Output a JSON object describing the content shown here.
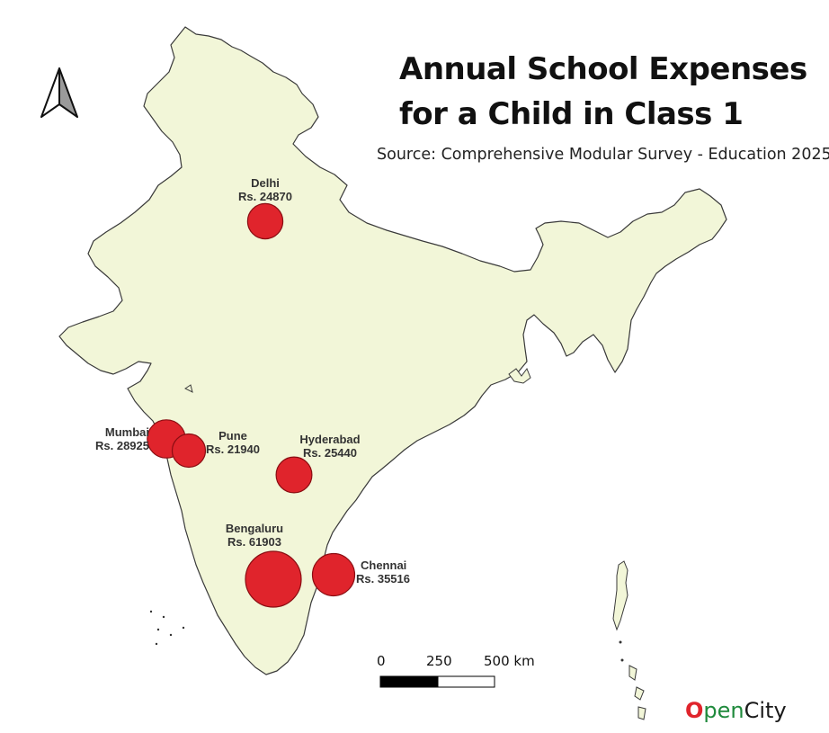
{
  "title_line1": "Annual School Expenses",
  "title_line2": "for a Child in Class 1",
  "source": "Source: Comprehensive Modular Survey - Education 2025",
  "colors": {
    "land": "#f2f6d8",
    "border": "#3a3a3a",
    "bubble_fill": "#e0242c",
    "bubble_stroke": "#8a0d12",
    "label_text": "#333333"
  },
  "cities": [
    {
      "id": "delhi",
      "name": "Delhi",
      "value_label": "Rs. 24870",
      "value": 24870
    },
    {
      "id": "mumbai",
      "name": "Mumbai",
      "value_label": "Rs. 28925",
      "value": 28925
    },
    {
      "id": "pune",
      "name": "Pune",
      "value_label": "Rs. 21940",
      "value": 21940
    },
    {
      "id": "hyderabad",
      "name": "Hyderabad",
      "value_label": "Rs. 25440",
      "value": 25440
    },
    {
      "id": "bengaluru",
      "name": "Bengaluru",
      "value_label": "Rs. 61903",
      "value": 61903
    },
    {
      "id": "chennai",
      "name": "Chennai",
      "value_label": "Rs. 35516",
      "value": 35516
    }
  ],
  "scale_bar": {
    "ticks": [
      "0",
      "250",
      "500 km"
    ]
  },
  "north_arrow_icon": "north-arrow-icon",
  "logo": {
    "o": "O",
    "pen": "pen",
    "city": "City"
  }
}
